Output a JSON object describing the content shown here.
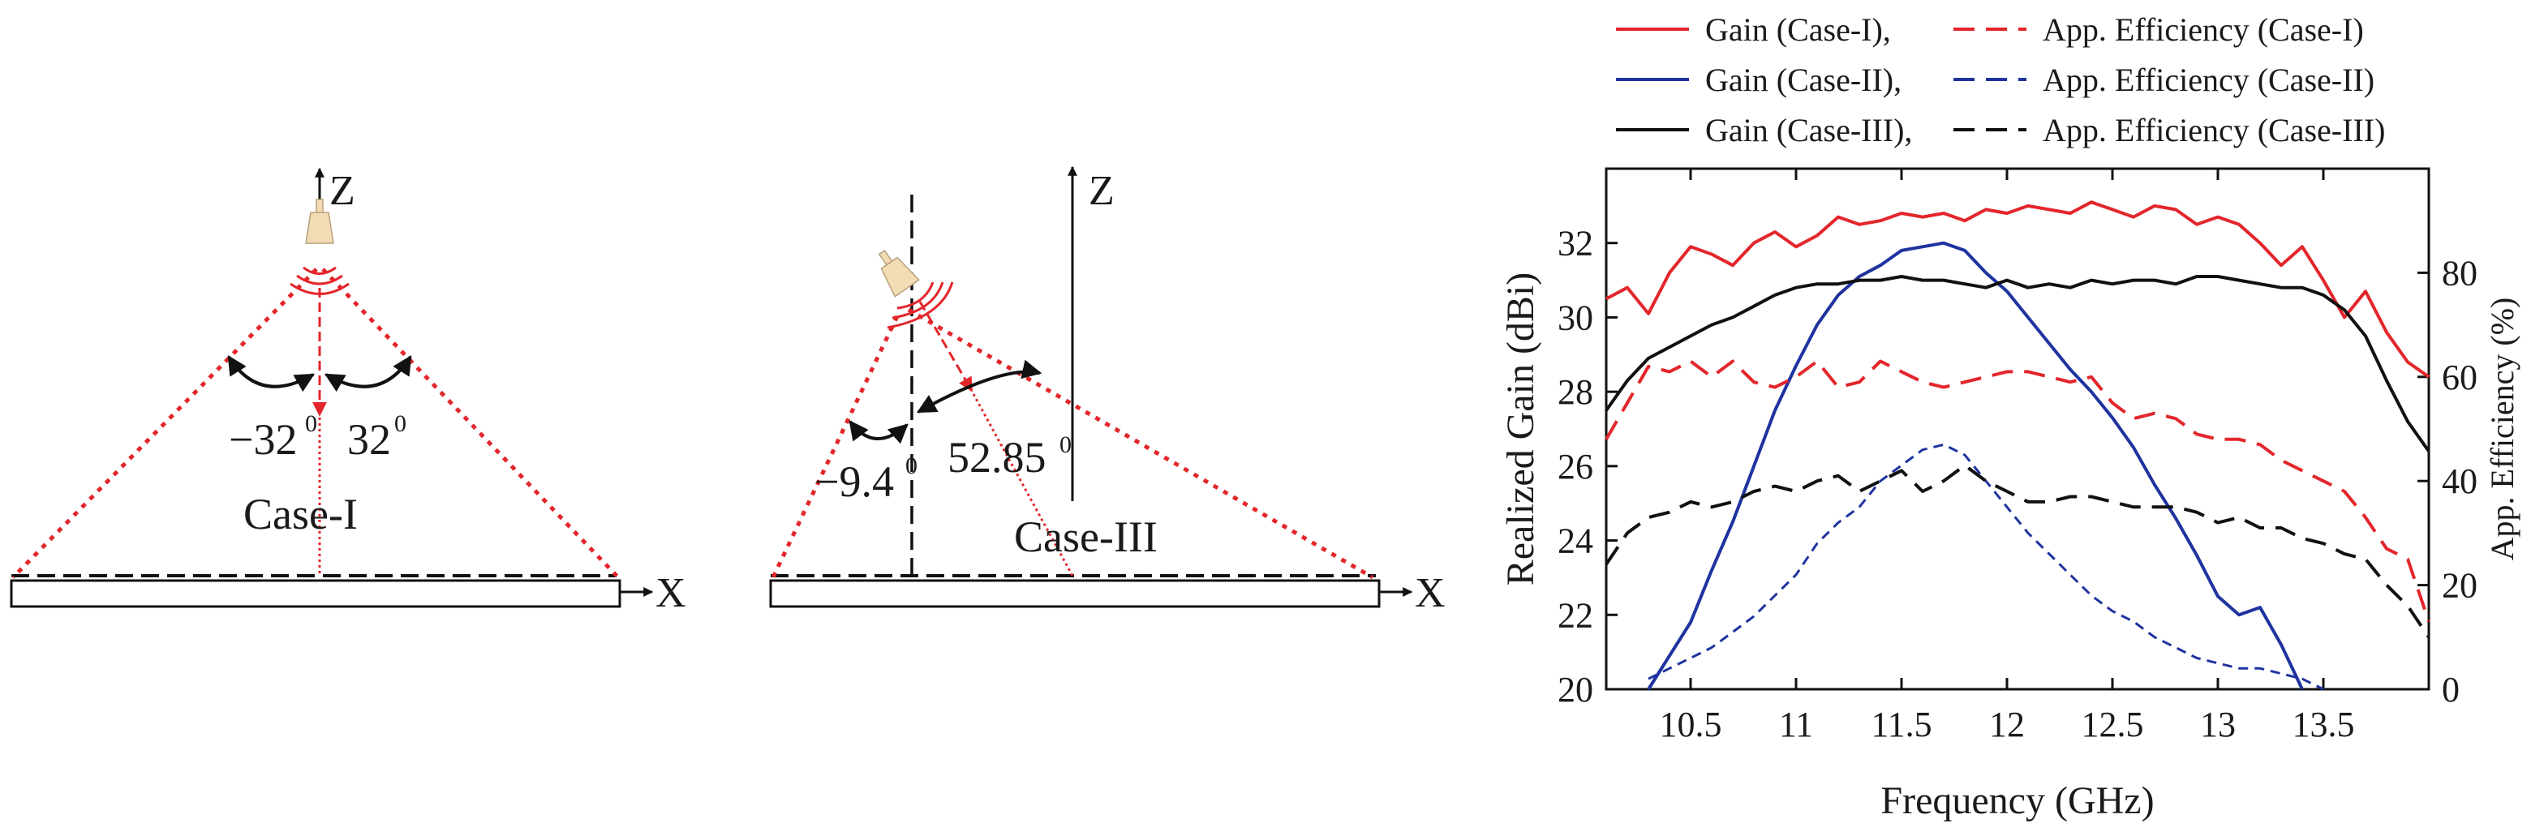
{
  "diagram_case1": {
    "axis_z": "Z",
    "axis_x": "X",
    "angle_left": "−32",
    "angle_left_sup": "0",
    "angle_right": "32",
    "angle_right_sup": "0",
    "case_label": "Case-I"
  },
  "diagram_case3": {
    "axis_z": "Z",
    "axis_x": "X",
    "angle_left": "−9.4",
    "angle_left_sup": "0",
    "angle_right": "52.85",
    "angle_right_sup": "0",
    "case_label": "Case-III"
  },
  "colors": {
    "red": "#e3262b",
    "blue": "#1f33a0",
    "black": "#111111",
    "horn": "#f2dcb5"
  },
  "chart_data": {
    "type": "line",
    "xlabel": "Frequency (GHz)",
    "ylabel": "Realized Gain (dBi)",
    "y2label": "App. Efficiency (%)",
    "xlim": [
      10.1,
      14.0
    ],
    "ylim": [
      20,
      34
    ],
    "y2lim": [
      0,
      100
    ],
    "xticks": [
      10.5,
      11,
      11.5,
      12,
      12.5,
      13,
      13.5
    ],
    "xtick_labels": [
      "10.5",
      "11",
      "11.5",
      "12",
      "12.5",
      "13",
      "13.5"
    ],
    "yticks": [
      20,
      22,
      24,
      26,
      28,
      30,
      32
    ],
    "ytick_labels": [
      "20",
      "22",
      "24",
      "26",
      "28",
      "30",
      "32"
    ],
    "y2ticks": [
      0,
      20,
      40,
      60,
      80
    ],
    "y2tick_labels": [
      "0",
      "20",
      "40",
      "60",
      "80"
    ],
    "grid": false,
    "legend_position": "top",
    "legend": [
      {
        "label": "Gain (Case-I),",
        "color": "#e3262b",
        "dash": "solid"
      },
      {
        "label": "App. Efficiency (Case-I)",
        "color": "#e3262b",
        "dash": "dashed"
      },
      {
        "label": "Gain (Case-II),",
        "color": "#1f33a0",
        "dash": "solid"
      },
      {
        "label": "App. Efficiency (Case-II)",
        "color": "#1f33a0",
        "dash": "dashed"
      },
      {
        "label": "Gain (Case-III),",
        "color": "#111111",
        "dash": "solid"
      },
      {
        "label": "App. Efficiency (Case-III)",
        "color": "#111111",
        "dash": "dashed"
      }
    ],
    "series": [
      {
        "name": "Gain (Case-I)",
        "axis": "left",
        "color": "#e3262b",
        "dash": "solid",
        "width": 4,
        "x": [
          10.1,
          10.2,
          10.3,
          10.4,
          10.5,
          10.6,
          10.7,
          10.8,
          10.9,
          11.0,
          11.1,
          11.2,
          11.3,
          11.4,
          11.5,
          11.6,
          11.7,
          11.8,
          11.9,
          12.0,
          12.1,
          12.2,
          12.3,
          12.4,
          12.5,
          12.6,
          12.7,
          12.8,
          12.9,
          13.0,
          13.1,
          13.2,
          13.3,
          13.4,
          13.5,
          13.6,
          13.7,
          13.8,
          13.9,
          14.0
        ],
        "y": [
          30.5,
          30.8,
          30.1,
          31.2,
          31.9,
          31.7,
          31.4,
          32.0,
          32.3,
          31.9,
          32.2,
          32.7,
          32.5,
          32.6,
          32.8,
          32.7,
          32.8,
          32.6,
          32.9,
          32.8,
          33.0,
          32.9,
          32.8,
          33.1,
          32.9,
          32.7,
          33.0,
          32.9,
          32.5,
          32.7,
          32.5,
          32.0,
          31.4,
          31.9,
          31.0,
          30.0,
          30.7,
          29.6,
          28.8,
          28.4
        ]
      },
      {
        "name": "Gain (Case-II)",
        "axis": "left",
        "color": "#1f33a0",
        "dash": "solid",
        "width": 4,
        "x": [
          10.3,
          10.4,
          10.5,
          10.6,
          10.7,
          10.8,
          10.9,
          11.0,
          11.1,
          11.2,
          11.3,
          11.4,
          11.5,
          11.6,
          11.7,
          11.8,
          11.9,
          12.0,
          12.1,
          12.2,
          12.3,
          12.4,
          12.5,
          12.6,
          12.7,
          12.8,
          12.9,
          13.0,
          13.1,
          13.2,
          13.3,
          13.4
        ],
        "y": [
          20.0,
          20.9,
          21.8,
          23.2,
          24.5,
          26.0,
          27.5,
          28.7,
          29.8,
          30.6,
          31.1,
          31.4,
          31.8,
          31.9,
          32.0,
          31.8,
          31.2,
          30.7,
          30.0,
          29.3,
          28.6,
          28.0,
          27.3,
          26.5,
          25.5,
          24.6,
          23.6,
          22.5,
          22.0,
          22.2,
          21.2,
          20.0
        ]
      },
      {
        "name": "Gain (Case-III)",
        "axis": "left",
        "color": "#111111",
        "dash": "solid",
        "width": 4,
        "x": [
          10.1,
          10.2,
          10.3,
          10.4,
          10.5,
          10.6,
          10.7,
          10.8,
          10.9,
          11.0,
          11.1,
          11.2,
          11.3,
          11.4,
          11.5,
          11.6,
          11.7,
          11.8,
          11.9,
          12.0,
          12.1,
          12.2,
          12.3,
          12.4,
          12.5,
          12.6,
          12.7,
          12.8,
          12.9,
          13.0,
          13.1,
          13.2,
          13.3,
          13.4,
          13.5,
          13.6,
          13.7,
          13.8,
          13.9,
          14.0
        ],
        "y": [
          27.5,
          28.3,
          28.9,
          29.2,
          29.5,
          29.8,
          30.0,
          30.3,
          30.6,
          30.8,
          30.9,
          30.9,
          31.0,
          31.0,
          31.1,
          31.0,
          31.0,
          30.9,
          30.8,
          31.0,
          30.8,
          30.9,
          30.8,
          31.0,
          30.9,
          31.0,
          31.0,
          30.9,
          31.1,
          31.1,
          31.0,
          30.9,
          30.8,
          30.8,
          30.6,
          30.2,
          29.5,
          28.3,
          27.2,
          26.4
        ]
      },
      {
        "name": "App. Efficiency (Case-I)",
        "axis": "right",
        "color": "#e3262b",
        "dash": "dashed",
        "width": 4,
        "x": [
          10.1,
          10.2,
          10.3,
          10.4,
          10.5,
          10.6,
          10.7,
          10.8,
          10.9,
          11.0,
          11.1,
          11.2,
          11.3,
          11.4,
          11.5,
          11.6,
          11.7,
          11.8,
          11.9,
          12.0,
          12.1,
          12.2,
          12.3,
          12.4,
          12.5,
          12.6,
          12.7,
          12.8,
          12.9,
          13.0,
          13.1,
          13.2,
          13.3,
          13.4,
          13.5,
          13.6,
          13.7,
          13.8,
          13.9,
          14.0
        ],
        "y": [
          48,
          55,
          62,
          61,
          63,
          60,
          63,
          59,
          58,
          60,
          63,
          58,
          59,
          63,
          61,
          59,
          58,
          59,
          60,
          61,
          61,
          60,
          59,
          60,
          55,
          52,
          53,
          52,
          49,
          48,
          48,
          47,
          44,
          42,
          40,
          38,
          33,
          27,
          25,
          13
        ]
      },
      {
        "name": "App. Efficiency (Case-II)",
        "axis": "right",
        "color": "#1f33a0",
        "dash": "dashed",
        "width": 3,
        "x": [
          10.3,
          10.4,
          10.5,
          10.6,
          10.7,
          10.8,
          10.9,
          11.0,
          11.1,
          11.2,
          11.3,
          11.4,
          11.5,
          11.6,
          11.7,
          11.8,
          11.9,
          12.0,
          12.1,
          12.2,
          12.3,
          12.4,
          12.5,
          12.6,
          12.7,
          12.8,
          12.9,
          13.0,
          13.1,
          13.2,
          13.3,
          13.4,
          13.5
        ],
        "y": [
          2,
          4,
          6,
          8,
          11,
          14,
          18,
          22,
          28,
          32,
          35,
          40,
          43,
          46,
          47,
          45,
          40,
          35,
          30,
          26,
          22,
          18,
          15,
          13,
          10,
          8,
          6,
          5,
          4,
          4,
          3,
          2,
          0
        ]
      },
      {
        "name": "App. Efficiency (Case-III)",
        "axis": "right",
        "color": "#111111",
        "dash": "dashed",
        "width": 4,
        "x": [
          10.1,
          10.2,
          10.3,
          10.4,
          10.5,
          10.6,
          10.7,
          10.8,
          10.9,
          11.0,
          11.1,
          11.2,
          11.3,
          11.4,
          11.5,
          11.6,
          11.7,
          11.8,
          11.9,
          12.0,
          12.1,
          12.2,
          12.3,
          12.4,
          12.5,
          12.6,
          12.7,
          12.8,
          12.9,
          13.0,
          13.1,
          13.2,
          13.3,
          13.4,
          13.5,
          13.6,
          13.7,
          13.8,
          13.9,
          14.0
        ],
        "y": [
          24,
          30,
          33,
          34,
          36,
          35,
          36,
          38,
          39,
          38,
          40,
          41,
          38,
          40,
          42,
          38,
          40,
          43,
          40,
          38,
          36,
          36,
          37,
          37,
          36,
          35,
          35,
          35,
          34,
          32,
          33,
          31,
          31,
          29,
          28,
          26,
          25,
          20,
          16,
          10
        ]
      }
    ]
  }
}
